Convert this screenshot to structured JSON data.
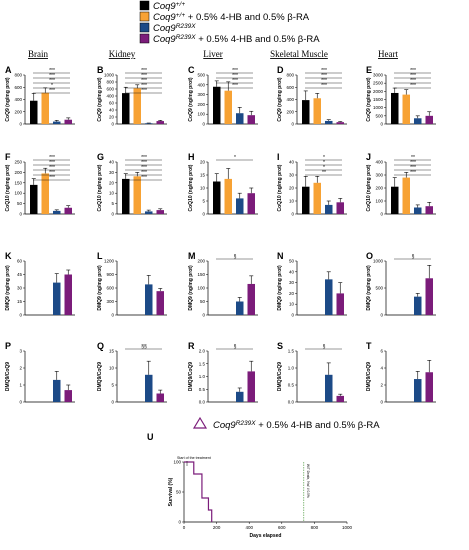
{
  "legend": {
    "items": [
      {
        "text": "Coq9",
        "sup": "+/+",
        "rest": "",
        "color": "#000000"
      },
      {
        "text": "Coq9",
        "sup": "+/+",
        "rest": " + 0.5% 4-HB and 0.5%  β-RA",
        "color": "#f7a234"
      },
      {
        "text": "Coq9",
        "sup": "R239X",
        "rest": "",
        "color": "#1c4a87"
      },
      {
        "text": "Coq9",
        "sup": "R239X",
        "rest": " + 0.5% 4-HB and 0.5%  β-RA",
        "color": "#7b1c7a"
      }
    ]
  },
  "columns": [
    "Brain",
    "Kidney",
    "Liver",
    "Skeletal Muscle",
    "Heart"
  ],
  "colors": {
    "wt": "#000000",
    "wt_treated": "#f7a234",
    "mut": "#1c4a87",
    "mut_treated": "#7b1c7a"
  },
  "chart_data": [
    {
      "panel": "A",
      "type": "bar",
      "title": "Brain",
      "ylabel": "CoQ9 (ng/mg prot)",
      "ylim": [
        0,
        800
      ],
      "yticks": [
        "0",
        "200",
        "400",
        "600",
        "800"
      ],
      "values": [
        380,
        510,
        40,
        70
      ],
      "errors": [
        120,
        80,
        20,
        30
      ],
      "sig": [
        "***",
        "***",
        "***",
        "*",
        "***"
      ]
    },
    {
      "panel": "B",
      "type": "bar",
      "title": "Kidney",
      "ylabel": "CoQ9 (ng/mg prot)",
      "ylim": [
        0,
        1000
      ],
      "yticks": [
        "0",
        "20",
        "40",
        "60",
        "400",
        "600",
        "800",
        "1000"
      ],
      "values": [
        630,
        730,
        15,
        60
      ],
      "errors": [
        120,
        70,
        5,
        15
      ],
      "sig": [
        "***",
        "***",
        "***",
        "***",
        "***"
      ]
    },
    {
      "panel": "C",
      "type": "bar",
      "title": "Liver",
      "ylabel": "CoQ9 (ng/mg prot)",
      "ylim": [
        0,
        500
      ],
      "yticks": [
        "0",
        "100",
        "200",
        "300",
        "400",
        "500"
      ],
      "values": [
        380,
        340,
        110,
        90
      ],
      "errors": [
        60,
        90,
        60,
        40
      ],
      "sig": [
        "***",
        "***",
        "***",
        "***"
      ]
    },
    {
      "panel": "D",
      "type": "bar",
      "title": "Skeletal Muscle",
      "ylabel": "CoQ9 (ng/mg prot)",
      "ylim": [
        0,
        800
      ],
      "yticks": [
        "0",
        "200",
        "400",
        "600",
        "800"
      ],
      "values": [
        390,
        420,
        50,
        30
      ],
      "errors": [
        150,
        80,
        20,
        10
      ],
      "sig": [
        "***",
        "***",
        "***",
        "***"
      ]
    },
    {
      "panel": "E",
      "type": "bar",
      "title": "Heart",
      "ylabel": "CoQ9 (ng/mg prot)",
      "ylim": [
        0,
        3000
      ],
      "yticks": [
        "0",
        "500",
        "1000",
        "1500",
        "2000",
        "2500",
        "3000"
      ],
      "values": [
        1900,
        1800,
        350,
        500
      ],
      "errors": [
        300,
        300,
        150,
        250
      ],
      "sig": [
        "***",
        "***",
        "***",
        "***"
      ]
    },
    {
      "panel": "G",
      "type": "bar",
      "ylabel": "CoQ10 (ng/mg prot)",
      "ylim": [
        0,
        250
      ],
      "yticks": [
        "0",
        "50",
        "100",
        "150",
        "200",
        "250"
      ],
      "values": [
        140,
        195,
        15,
        30
      ],
      "errors": [
        30,
        25,
        5,
        10
      ],
      "sig": [
        "***",
        "***",
        "***",
        "***",
        "***"
      ]
    },
    {
      "panel": "G",
      "type": "bar",
      "ylabel": "CoQ10 (ng/mg prot)",
      "ylim": [
        0,
        40
      ],
      "yticks": [
        "0",
        "5",
        "10",
        "20",
        "30",
        "40"
      ],
      "values": [
        27,
        29,
        2,
        3
      ],
      "errors": [
        4,
        3,
        1,
        1
      ],
      "sig": [
        "***",
        "***",
        "***",
        "***",
        "***"
      ]
    },
    {
      "panel": "H",
      "type": "bar",
      "ylabel": "CoQ10 (ng/mg prot)",
      "ylim": [
        0,
        20
      ],
      "yticks": [
        "0",
        "5",
        "10",
        "15",
        "20"
      ],
      "values": [
        12.5,
        13.5,
        6,
        8
      ],
      "errors": [
        3,
        4,
        2,
        2
      ],
      "sig": [
        "*"
      ]
    },
    {
      "panel": "I",
      "type": "bar",
      "ylabel": "CoQ10 (ng/mg prot)",
      "ylim": [
        0,
        40
      ],
      "yticks": [
        "0",
        "10",
        "20",
        "30",
        "40"
      ],
      "values": [
        21,
        24,
        7,
        9
      ],
      "errors": [
        8,
        5,
        3,
        3
      ],
      "sig": [
        "*",
        "*",
        "*",
        "**"
      ]
    },
    {
      "panel": "J",
      "type": "bar",
      "ylabel": "CoQ10 (ng/mg prot)",
      "ylim": [
        0,
        400
      ],
      "yticks": [
        "0",
        "100",
        "200",
        "300",
        "400"
      ],
      "values": [
        210,
        280,
        50,
        60
      ],
      "errors": [
        70,
        40,
        20,
        30
      ],
      "sig": [
        "**",
        "***",
        "***",
        "***"
      ]
    },
    {
      "panel": "K",
      "type": "bar",
      "ylabel": "DMQ9 (ng/mg prot)",
      "ylim": [
        0,
        60
      ],
      "yticks": [
        "0",
        "15",
        "30",
        "45",
        "60"
      ],
      "values": [
        0,
        0,
        36,
        45
      ],
      "errors": [
        0,
        0,
        10,
        5
      ],
      "sig": []
    },
    {
      "panel": "L",
      "type": "bar",
      "ylabel": "DMQ9 (ng/mg prot)",
      "ylim": [
        0,
        1200
      ],
      "yticks": [
        "0",
        "300",
        "600",
        "900",
        "1200"
      ],
      "values": [
        0,
        0,
        680,
        530
      ],
      "errors": [
        0,
        0,
        200,
        60
      ],
      "sig": []
    },
    {
      "panel": "M",
      "type": "bar",
      "ylabel": "DMQ9 (ng/mg prot)",
      "ylim": [
        0,
        200
      ],
      "yticks": [
        "0",
        "50",
        "100",
        "150",
        "200"
      ],
      "values": [
        0,
        0,
        50,
        115
      ],
      "errors": [
        0,
        0,
        15,
        30
      ],
      "sig": [
        "§"
      ]
    },
    {
      "panel": "N",
      "type": "bar",
      "ylabel": "DMQ9 (ng/mg prot)",
      "ylim": [
        0,
        50
      ],
      "yticks": [
        "0",
        "10",
        "20",
        "30",
        "40",
        "50"
      ],
      "values": [
        0,
        0,
        33,
        20
      ],
      "errors": [
        0,
        0,
        7,
        10
      ],
      "sig": []
    },
    {
      "panel": "O",
      "type": "bar",
      "ylabel": "DMQ9 (ng/mg prot)",
      "ylim": [
        0,
        1000
      ],
      "yticks": [
        "0",
        "500",
        "1000"
      ],
      "values": [
        0,
        0,
        340,
        680
      ],
      "errors": [
        0,
        0,
        60,
        240
      ],
      "sig": [
        "§"
      ]
    },
    {
      "panel": "P",
      "type": "bar",
      "ylabel": "DMQ9/CoQ9",
      "ylim": [
        0,
        3
      ],
      "yticks": [
        "0",
        "1",
        "2",
        "3"
      ],
      "values": [
        0,
        0,
        1.3,
        0.7
      ],
      "errors": [
        0,
        0,
        0.5,
        0.3
      ],
      "sig": []
    },
    {
      "panel": "Q",
      "type": "bar",
      "ylabel": "DMQ9/CoQ9",
      "ylim": [
        0,
        15
      ],
      "yticks": [
        "0",
        "5",
        "10",
        "15"
      ],
      "values": [
        0,
        0,
        8,
        2.5
      ],
      "errors": [
        0,
        0,
        4,
        1
      ],
      "sig": [
        "§§"
      ]
    },
    {
      "panel": "R",
      "type": "bar",
      "ylabel": "DMQ9/CoQ9",
      "ylim": [
        0,
        2
      ],
      "yticks": [
        "0.0",
        "0.5",
        "1.0",
        "1.5",
        "2.0"
      ],
      "values": [
        0,
        0,
        0.4,
        1.2
      ],
      "errors": [
        0,
        0,
        0.15,
        0.4
      ],
      "sig": [
        "§"
      ]
    },
    {
      "panel": "S",
      "type": "bar",
      "ylabel": "DMQ9/CoQ9",
      "ylim": [
        0,
        1.5
      ],
      "yticks": [
        "0.0",
        "0.5",
        "1.0",
        "1.5"
      ],
      "values": [
        0,
        0,
        0.8,
        0.18
      ],
      "errors": [
        0,
        0,
        0.35,
        0.05
      ],
      "sig": [
        "§"
      ]
    },
    {
      "panel": "T",
      "type": "bar",
      "ylabel": "DMQ9/CoQ9",
      "ylim": [
        0,
        6
      ],
      "yticks": [
        "0",
        "2",
        "4",
        "6"
      ],
      "values": [
        0,
        0,
        2.7,
        3.5
      ],
      "errors": [
        0,
        0,
        0.9,
        1.4
      ],
      "sig": []
    },
    {
      "panel": "U",
      "type": "line",
      "legend": "Coq9R239X + 0.5% 4-HB and 0.5% β-RA",
      "xlabel": "Days elapsed",
      "ylabel": "Survival (%)",
      "xlim": [
        0,
        1000
      ],
      "ylim": [
        0,
        100
      ],
      "xticks": [
        "0",
        "200",
        "400",
        "600",
        "800",
        "1000"
      ],
      "yticks": [
        "0",
        "50",
        "100"
      ],
      "annotations": [
        "Start of the treatment",
        "W/T Death, 'Hai' # 0.5%"
      ],
      "x": [
        0,
        60,
        60,
        110,
        110,
        150,
        150,
        170,
        170
      ],
      "y": [
        100,
        100,
        80,
        80,
        40,
        40,
        20,
        20,
        0
      ]
    }
  ]
}
